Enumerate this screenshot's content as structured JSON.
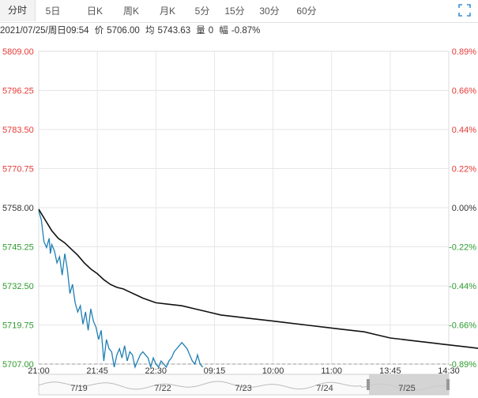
{
  "tabs": [
    {
      "label": "分时",
      "active": true
    },
    {
      "label": "5日",
      "active": false
    },
    {
      "label": "日K",
      "active": false
    },
    {
      "label": "周K",
      "active": false
    },
    {
      "label": "月K",
      "active": false
    },
    {
      "label": "5分",
      "active": false
    },
    {
      "label": "15分",
      "active": false
    },
    {
      "label": "30分",
      "active": false
    },
    {
      "label": "60分",
      "active": false
    }
  ],
  "icons": {
    "expand": "expand-fullscreen-icon"
  },
  "info": {
    "datetime": "2021/07/25/周日09:54",
    "price_label": "价",
    "price": "5706.00",
    "avg_label": "均",
    "avg": "5743.63",
    "vol_label": "量",
    "vol": "0",
    "change_label": "幅",
    "change": "-0.87%"
  },
  "colors": {
    "price_line": "#1f7fb4",
    "avg_line": "#111111",
    "up": "#e53935",
    "down": "#2e9a2e",
    "flat": "#333333",
    "grid": "#e6e6e6",
    "navigator_fill": "#cccccc"
  },
  "chart_data": {
    "type": "line",
    "x_ticks": [
      "21:00",
      "21:45",
      "22:30",
      "09:15",
      "10:00",
      "11:00",
      "13:45",
      "14:30"
    ],
    "y_ticks": [
      "5809.00",
      "5796.25",
      "5783.50",
      "5770.75",
      "5758.00",
      "5745.25",
      "5732.50",
      "5719.75",
      "5707.00"
    ],
    "y_ticks_right": [
      "0.89%",
      "0.66%",
      "0.44%",
      "0.22%",
      "0.00%",
      "-0.22%",
      "-0.44%",
      "-0.66%",
      "-0.89%"
    ],
    "y_tick_dir": [
      "up",
      "up",
      "up",
      "up",
      "flat",
      "down",
      "down",
      "down",
      "down"
    ],
    "ylim": [
      5707,
      5809
    ],
    "reference_price": 5758,
    "series": [
      {
        "role": "price",
        "x": [
          0,
          2,
          4,
          6,
          8,
          9,
          10,
          12,
          14,
          16,
          18,
          20,
          22,
          24,
          26,
          28,
          30,
          32,
          34,
          36,
          38,
          40,
          42,
          44,
          46,
          48,
          50,
          52,
          54,
          56,
          58,
          60,
          62,
          64,
          66,
          68,
          70,
          72,
          74,
          76,
          78,
          80,
          82,
          84,
          86,
          88,
          90,
          92,
          94,
          96,
          98,
          100,
          102,
          104,
          106,
          108,
          110,
          112,
          114,
          116,
          118,
          120,
          122,
          124,
          126
        ],
        "y": [
          5757,
          5754,
          5747,
          5745,
          5748,
          5743,
          5746,
          5744,
          5740,
          5742,
          5736,
          5743,
          5738,
          5730,
          5733,
          5727,
          5724,
          5726,
          5720,
          5724,
          5718,
          5725,
          5721,
          5719,
          5715,
          5718,
          5708,
          5715,
          5712,
          5711,
          5706,
          5710,
          5712,
          5709,
          5713,
          5708,
          5711,
          5710,
          5706,
          5708,
          5710,
          5711,
          5710,
          5709,
          5706,
          5709,
          5707,
          5706,
          5708,
          5707,
          5706,
          5708,
          5709,
          5711,
          5712,
          5713,
          5714,
          5713,
          5712,
          5710,
          5708,
          5707,
          5710,
          5707,
          5706
        ]
      },
      {
        "role": "avg",
        "x": [
          0,
          5,
          10,
          15,
          20,
          25,
          30,
          35,
          40,
          45,
          50,
          55,
          60,
          65,
          70,
          75,
          80,
          90,
          100,
          110,
          120,
          130,
          140,
          150,
          160,
          170,
          180,
          190,
          200,
          210,
          220,
          230,
          240,
          250,
          260,
          270,
          280,
          290,
          300,
          310,
          320,
          330,
          340,
          350,
          360,
          365,
          370,
          373
        ],
        "y": [
          5757.5,
          5754,
          5750.5,
          5748,
          5746.5,
          5744.5,
          5742.5,
          5740,
          5738,
          5736.5,
          5734.5,
          5733,
          5732,
          5731.5,
          5730.5,
          5729.5,
          5728.5,
          5727,
          5726.5,
          5726,
          5725,
          5724,
          5723,
          5722.5,
          5722,
          5721.5,
          5721,
          5720.5,
          5720,
          5719.5,
          5719,
          5718.5,
          5718,
          5717.5,
          5716.5,
          5715.5,
          5715,
          5714.5,
          5714,
          5713.5,
          5713,
          5712.5,
          5712,
          5711.5,
          5711,
          5710,
          5708,
          5706
        ]
      }
    ],
    "navigator": {
      "labels": [
        "7/19",
        "7/22",
        "7/23",
        "7/24",
        "7/25"
      ]
    }
  }
}
